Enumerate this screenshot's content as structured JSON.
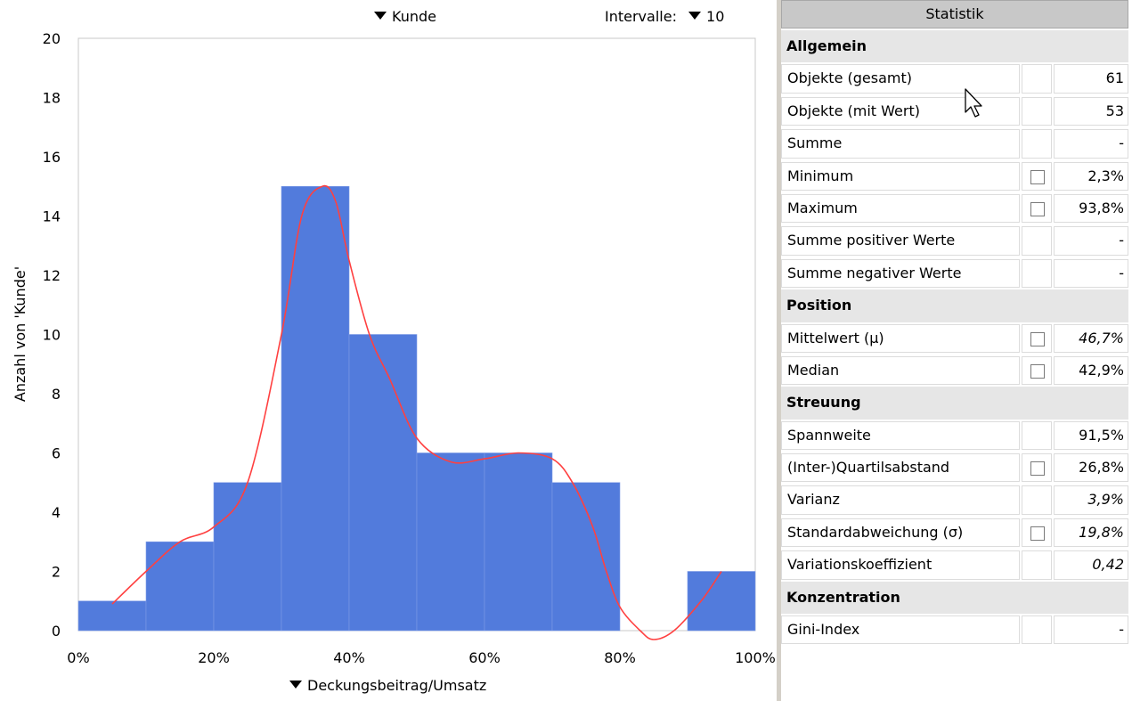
{
  "chart_data": {
    "type": "bar",
    "xlabel": "Deckungsbeitrag/Umsatz",
    "ylabel": "Anzahl von 'Kunde'",
    "bins": [
      {
        "start": 0,
        "end": 10,
        "count": 1
      },
      {
        "start": 10,
        "end": 20,
        "count": 3
      },
      {
        "start": 20,
        "end": 30,
        "count": 5
      },
      {
        "start": 30,
        "end": 40,
        "count": 15
      },
      {
        "start": 40,
        "end": 50,
        "count": 10
      },
      {
        "start": 50,
        "end": 60,
        "count": 6
      },
      {
        "start": 60,
        "end": 70,
        "count": 6
      },
      {
        "start": 70,
        "end": 80,
        "count": 5
      },
      {
        "start": 80,
        "end": 90,
        "count": 0
      },
      {
        "start": 90,
        "end": 100,
        "count": 2
      }
    ],
    "density_curve": {
      "x": [
        5,
        10,
        15,
        20,
        25,
        30,
        33,
        36,
        38,
        40,
        43,
        46,
        50,
        55,
        60,
        65,
        70,
        73,
        76,
        78,
        80,
        83,
        85,
        88,
        92,
        95
      ],
      "y": [
        0.9,
        2.0,
        3.0,
        3.5,
        5.0,
        10.0,
        14.0,
        15.0,
        14.5,
        12.5,
        10.0,
        8.5,
        6.5,
        5.7,
        5.8,
        6.0,
        5.8,
        5.0,
        3.5,
        2.0,
        0.8,
        0.0,
        -0.3,
        0.0,
        1.0,
        2.0
      ],
      "color": "#ff4040"
    },
    "xlim": [
      0,
      100
    ],
    "ylim": [
      0,
      20
    ],
    "x_ticks": [
      0,
      20,
      40,
      60,
      80,
      100
    ],
    "x_tick_labels": [
      "0%",
      "20%",
      "40%",
      "60%",
      "80%",
      "100%"
    ],
    "y_ticks": [
      0,
      2,
      4,
      6,
      8,
      10,
      12,
      14,
      16,
      18,
      20
    ],
    "bar_color": "#527bdc",
    "grid": false
  },
  "controls": {
    "group_by": "Kunde",
    "intervals_label": "Intervalle:",
    "intervals_value": "10"
  },
  "stats": {
    "title": "Statistik",
    "sections": [
      {
        "title": "Allgemein",
        "rows": [
          {
            "label": "Objekte (gesamt)",
            "value": "61",
            "checkbox": false,
            "italic": false
          },
          {
            "label": "Objekte (mit Wert)",
            "value": "53",
            "checkbox": false,
            "italic": false
          },
          {
            "label": "Summe",
            "value": "-",
            "checkbox": false,
            "italic": false
          },
          {
            "label": "Minimum",
            "value": "2,3%",
            "checkbox": true,
            "italic": false
          },
          {
            "label": "Maximum",
            "value": "93,8%",
            "checkbox": true,
            "italic": false
          },
          {
            "label": "Summe positiver Werte",
            "value": "-",
            "checkbox": false,
            "italic": false
          },
          {
            "label": "Summe negativer Werte",
            "value": "-",
            "checkbox": false,
            "italic": false
          }
        ]
      },
      {
        "title": "Position",
        "rows": [
          {
            "label": "Mittelwert (μ)",
            "value": "46,7%",
            "checkbox": true,
            "italic": true
          },
          {
            "label": "Median",
            "value": "42,9%",
            "checkbox": true,
            "italic": false
          }
        ]
      },
      {
        "title": "Streuung",
        "rows": [
          {
            "label": "Spannweite",
            "value": "91,5%",
            "checkbox": false,
            "italic": false
          },
          {
            "label": "(Inter-)Quartilsabstand",
            "value": "26,8%",
            "checkbox": true,
            "italic": false
          },
          {
            "label": "Varianz",
            "value": "3,9%",
            "checkbox": false,
            "italic": true
          },
          {
            "label": "Standardabweichung (σ)",
            "value": "19,8%",
            "checkbox": true,
            "italic": true
          },
          {
            "label": "Variationskoeffizient",
            "value": "0,42",
            "checkbox": false,
            "italic": true
          }
        ]
      },
      {
        "title": "Konzentration",
        "rows": [
          {
            "label": "Gini-Index",
            "value": "-",
            "checkbox": false,
            "italic": false
          }
        ]
      }
    ]
  }
}
